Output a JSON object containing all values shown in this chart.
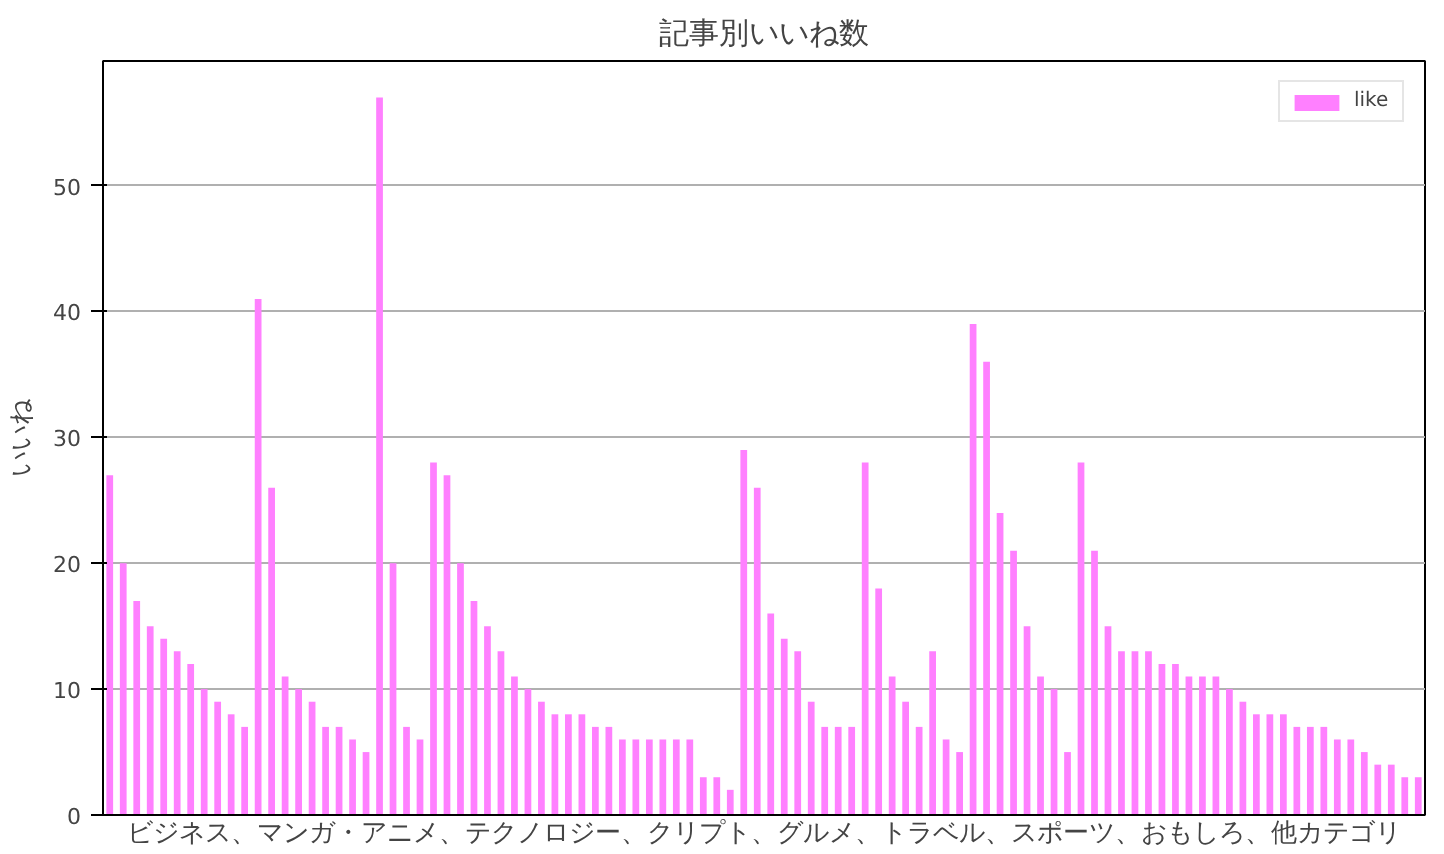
{
  "chart_data": {
    "type": "bar",
    "title": "記事別いいね数",
    "xlabel": "ビジネス、マンガ・アニメ、テクノロジー、クリプト、グルメ、トラベル、スポーツ、おもしろ、他カテゴリ",
    "ylabel": "いいね",
    "categories": [
      null,
      null,
      null,
      null,
      null,
      null,
      null,
      null,
      null,
      null,
      null,
      null,
      null,
      null,
      null,
      null,
      null,
      null,
      null,
      null,
      null,
      null,
      null,
      null,
      null,
      null,
      null,
      null,
      null,
      null,
      null,
      null,
      null,
      null,
      null,
      null,
      null,
      null,
      null,
      null,
      null,
      null,
      null,
      null,
      null,
      null,
      null,
      null,
      null,
      null,
      null,
      null,
      null,
      null,
      null,
      null,
      null,
      null,
      null,
      null,
      null,
      null,
      null,
      null,
      null,
      null,
      null,
      null,
      null,
      null,
      null,
      null,
      null,
      null,
      null,
      null,
      null,
      null,
      null,
      null,
      null,
      null,
      null,
      null,
      null,
      null,
      null,
      null,
      null,
      null,
      null,
      null,
      null,
      null,
      null,
      null,
      null,
      null
    ],
    "series": [
      {
        "name": "like",
        "color": "#ff80ff",
        "values": [
          27,
          20,
          17,
          15,
          14,
          13,
          12,
          10,
          9,
          8,
          7,
          41,
          26,
          11,
          10,
          9,
          7,
          7,
          6,
          5,
          57,
          20,
          7,
          6,
          28,
          27,
          20,
          17,
          15,
          13,
          11,
          10,
          9,
          8,
          8,
          8,
          7,
          7,
          6,
          6,
          6,
          6,
          6,
          6,
          3,
          3,
          2,
          29,
          26,
          16,
          14,
          13,
          9,
          7,
          7,
          7,
          28,
          18,
          11,
          9,
          7,
          13,
          6,
          5,
          39,
          36,
          24,
          21,
          15,
          11,
          10,
          5,
          28,
          21,
          15,
          13,
          13,
          13,
          12,
          12,
          11,
          11,
          11,
          10,
          9,
          8,
          8,
          8,
          7,
          7,
          7,
          6,
          6,
          5,
          4,
          4,
          3,
          3
        ]
      }
    ],
    "ylim": [
      0,
      59.9
    ],
    "yticks": [
      0,
      10,
      20,
      30,
      40,
      50
    ],
    "grid": "y",
    "legend": "top right",
    "tick_labels": "y"
  }
}
